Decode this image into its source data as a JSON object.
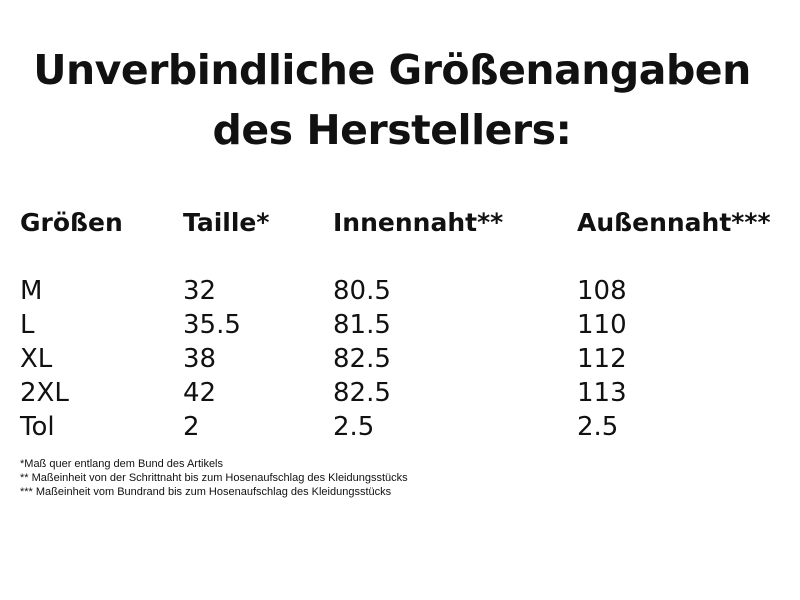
{
  "title": {
    "line1": "Unverbindliche Größenangaben",
    "line2": "des Herstellers:"
  },
  "table": {
    "headers": [
      "Größen",
      "Taille*",
      "Innennaht**",
      "Außennaht***"
    ],
    "rows": [
      [
        "M",
        "32",
        "80.5",
        "108"
      ],
      [
        "L",
        "35.5",
        "81.5",
        "110"
      ],
      [
        "XL",
        "38",
        "82.5",
        "112"
      ],
      [
        "2XL",
        "42",
        "82.5",
        "113"
      ],
      [
        "Tol",
        "2",
        "2.5",
        "2.5"
      ]
    ]
  },
  "footnotes": [
    "*Maß quer entlang dem Bund des Artikels",
    "** Maßeinheit von der Schrittnaht bis zum Hosenaufschlag des Kleidungsstücks",
    "*** Maßeinheit vom Bundrand bis zum Hosenaufschlag des Kleidungsstücks"
  ]
}
